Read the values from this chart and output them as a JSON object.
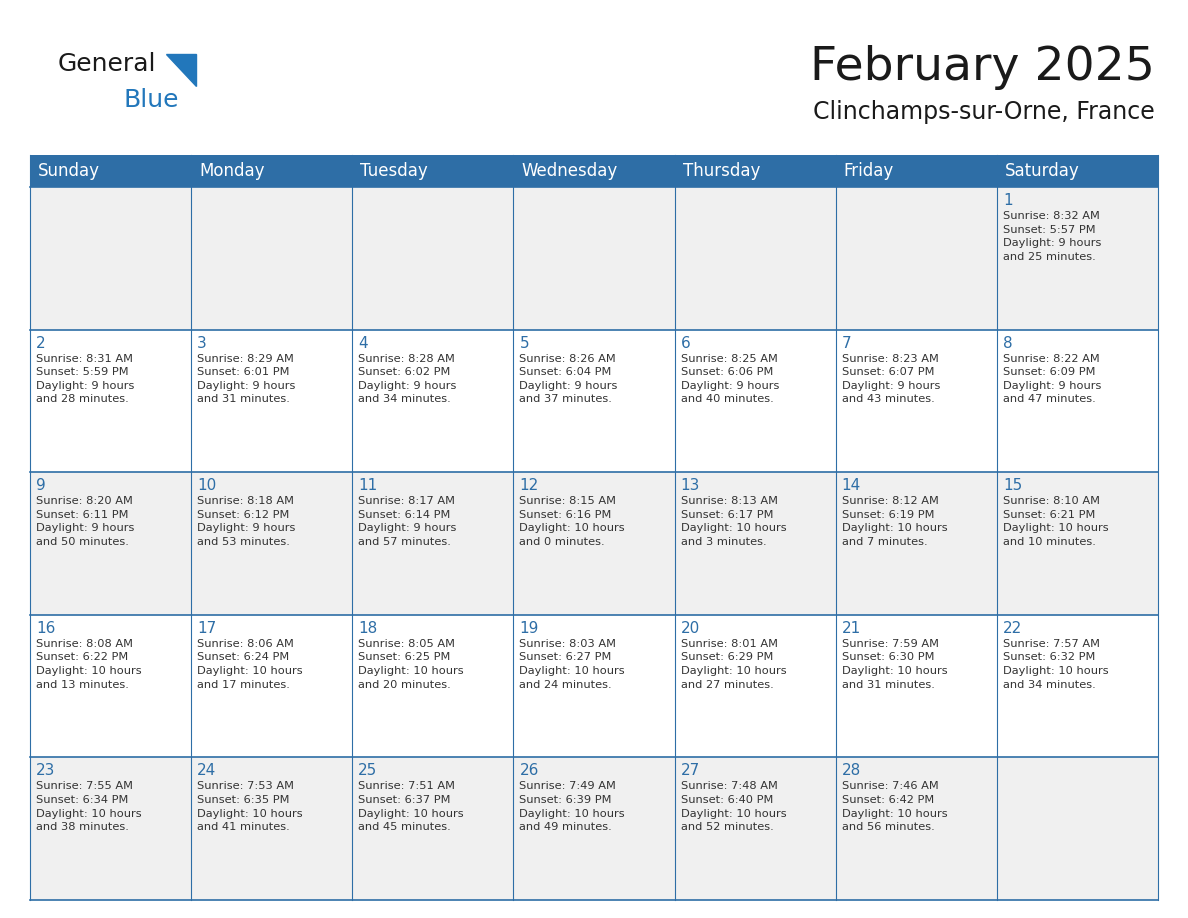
{
  "title": "February 2025",
  "subtitle": "Clinchamps-sur-Orne, France",
  "header_bg": "#2E6EA6",
  "header_text_color": "#FFFFFF",
  "cell_bg_odd": "#F0F0F0",
  "cell_bg_even": "#FFFFFF",
  "day_number_color": "#2E6EA6",
  "info_text_color": "#333333",
  "border_color": "#2E6EA6",
  "days_of_week": [
    "Sunday",
    "Monday",
    "Tuesday",
    "Wednesday",
    "Thursday",
    "Friday",
    "Saturday"
  ],
  "weeks": [
    [
      {
        "day": null,
        "info": null
      },
      {
        "day": null,
        "info": null
      },
      {
        "day": null,
        "info": null
      },
      {
        "day": null,
        "info": null
      },
      {
        "day": null,
        "info": null
      },
      {
        "day": null,
        "info": null
      },
      {
        "day": 1,
        "info": "Sunrise: 8:32 AM\nSunset: 5:57 PM\nDaylight: 9 hours\nand 25 minutes."
      }
    ],
    [
      {
        "day": 2,
        "info": "Sunrise: 8:31 AM\nSunset: 5:59 PM\nDaylight: 9 hours\nand 28 minutes."
      },
      {
        "day": 3,
        "info": "Sunrise: 8:29 AM\nSunset: 6:01 PM\nDaylight: 9 hours\nand 31 minutes."
      },
      {
        "day": 4,
        "info": "Sunrise: 8:28 AM\nSunset: 6:02 PM\nDaylight: 9 hours\nand 34 minutes."
      },
      {
        "day": 5,
        "info": "Sunrise: 8:26 AM\nSunset: 6:04 PM\nDaylight: 9 hours\nand 37 minutes."
      },
      {
        "day": 6,
        "info": "Sunrise: 8:25 AM\nSunset: 6:06 PM\nDaylight: 9 hours\nand 40 minutes."
      },
      {
        "day": 7,
        "info": "Sunrise: 8:23 AM\nSunset: 6:07 PM\nDaylight: 9 hours\nand 43 minutes."
      },
      {
        "day": 8,
        "info": "Sunrise: 8:22 AM\nSunset: 6:09 PM\nDaylight: 9 hours\nand 47 minutes."
      }
    ],
    [
      {
        "day": 9,
        "info": "Sunrise: 8:20 AM\nSunset: 6:11 PM\nDaylight: 9 hours\nand 50 minutes."
      },
      {
        "day": 10,
        "info": "Sunrise: 8:18 AM\nSunset: 6:12 PM\nDaylight: 9 hours\nand 53 minutes."
      },
      {
        "day": 11,
        "info": "Sunrise: 8:17 AM\nSunset: 6:14 PM\nDaylight: 9 hours\nand 57 minutes."
      },
      {
        "day": 12,
        "info": "Sunrise: 8:15 AM\nSunset: 6:16 PM\nDaylight: 10 hours\nand 0 minutes."
      },
      {
        "day": 13,
        "info": "Sunrise: 8:13 AM\nSunset: 6:17 PM\nDaylight: 10 hours\nand 3 minutes."
      },
      {
        "day": 14,
        "info": "Sunrise: 8:12 AM\nSunset: 6:19 PM\nDaylight: 10 hours\nand 7 minutes."
      },
      {
        "day": 15,
        "info": "Sunrise: 8:10 AM\nSunset: 6:21 PM\nDaylight: 10 hours\nand 10 minutes."
      }
    ],
    [
      {
        "day": 16,
        "info": "Sunrise: 8:08 AM\nSunset: 6:22 PM\nDaylight: 10 hours\nand 13 minutes."
      },
      {
        "day": 17,
        "info": "Sunrise: 8:06 AM\nSunset: 6:24 PM\nDaylight: 10 hours\nand 17 minutes."
      },
      {
        "day": 18,
        "info": "Sunrise: 8:05 AM\nSunset: 6:25 PM\nDaylight: 10 hours\nand 20 minutes."
      },
      {
        "day": 19,
        "info": "Sunrise: 8:03 AM\nSunset: 6:27 PM\nDaylight: 10 hours\nand 24 minutes."
      },
      {
        "day": 20,
        "info": "Sunrise: 8:01 AM\nSunset: 6:29 PM\nDaylight: 10 hours\nand 27 minutes."
      },
      {
        "day": 21,
        "info": "Sunrise: 7:59 AM\nSunset: 6:30 PM\nDaylight: 10 hours\nand 31 minutes."
      },
      {
        "day": 22,
        "info": "Sunrise: 7:57 AM\nSunset: 6:32 PM\nDaylight: 10 hours\nand 34 minutes."
      }
    ],
    [
      {
        "day": 23,
        "info": "Sunrise: 7:55 AM\nSunset: 6:34 PM\nDaylight: 10 hours\nand 38 minutes."
      },
      {
        "day": 24,
        "info": "Sunrise: 7:53 AM\nSunset: 6:35 PM\nDaylight: 10 hours\nand 41 minutes."
      },
      {
        "day": 25,
        "info": "Sunrise: 7:51 AM\nSunset: 6:37 PM\nDaylight: 10 hours\nand 45 minutes."
      },
      {
        "day": 26,
        "info": "Sunrise: 7:49 AM\nSunset: 6:39 PM\nDaylight: 10 hours\nand 49 minutes."
      },
      {
        "day": 27,
        "info": "Sunrise: 7:48 AM\nSunset: 6:40 PM\nDaylight: 10 hours\nand 52 minutes."
      },
      {
        "day": 28,
        "info": "Sunrise: 7:46 AM\nSunset: 6:42 PM\nDaylight: 10 hours\nand 56 minutes."
      },
      {
        "day": null,
        "info": null
      }
    ]
  ],
  "logo_general_color": "#1a1a1a",
  "logo_blue_color": "#2277BB",
  "title_fontsize": 34,
  "subtitle_fontsize": 17,
  "header_fontsize": 12,
  "day_num_fontsize": 11,
  "info_fontsize": 8.2
}
